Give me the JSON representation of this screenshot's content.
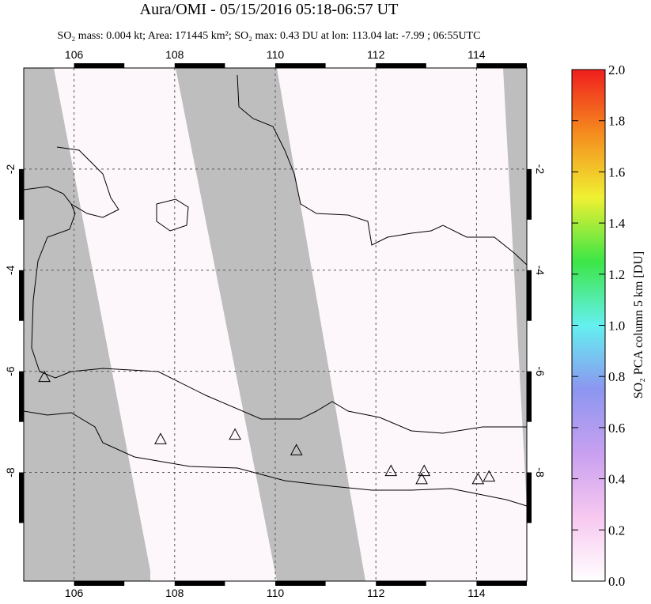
{
  "chart_data": {
    "type": "map",
    "title": "Aura/OMI - 05/15/2016 05:18-06:57 UT",
    "subtitle": "SO₂ mass: 0.004 kt; Area: 171445 km²; SO₂ max: 0.43 DU at lon: 113.04 lat: -7.99 ; 06:55UTC",
    "xlim": [
      105,
      115
    ],
    "ylim": [
      -10.15,
      0
    ],
    "xticks": [
      106,
      108,
      110,
      112,
      114
    ],
    "yticks": [
      -2,
      -4,
      -6,
      -8
    ],
    "grid": true,
    "volcanoes": {
      "x": [
        105.41,
        107.72,
        109.2,
        110.42,
        112.3,
        112.96,
        112.91,
        114.03,
        114.25
      ],
      "y": [
        -6.11,
        -7.34,
        -7.25,
        -7.56,
        -7.97,
        -7.97,
        -8.13,
        -8.13,
        -8.08
      ]
    },
    "colorbar": {
      "label": "SO₂ PCA column 5 km [DU]",
      "lim": [
        0,
        2
      ],
      "ticks": [
        {
          "value": 0,
          "label": "0.0"
        },
        0.2,
        0.4,
        0.6,
        0.8,
        {
          "value": 1,
          "label": "1.0"
        },
        1.2,
        1.4,
        1.6,
        1.8,
        {
          "value": 2,
          "label": "2.0"
        }
      ],
      "colors": [
        "#ffffff",
        "#f7c8f0",
        "#c8a0f0",
        "#8c96f0",
        "#64f0f0",
        "#3ce646",
        "#f0f032",
        "#f58c1e",
        "#f01e1e"
      ]
    }
  }
}
